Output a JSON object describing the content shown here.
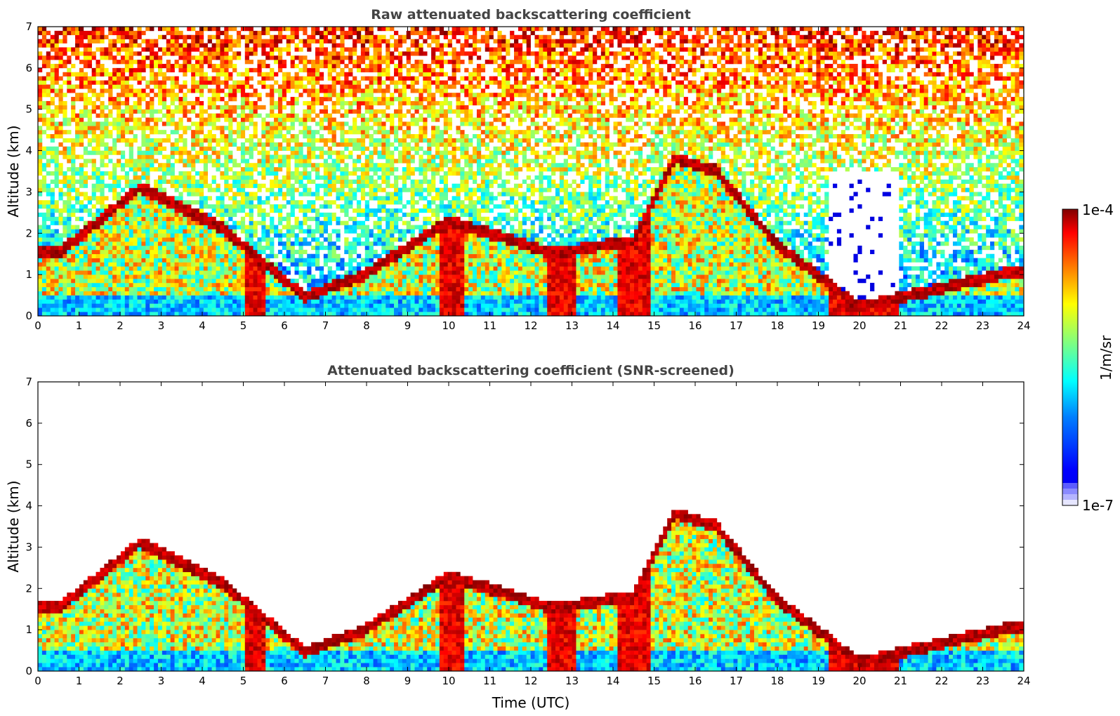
{
  "chart_data": [
    {
      "type": "heatmap",
      "title": "Raw attenuated backscattering coefficient",
      "xlabel": "",
      "ylabel": "Altitude (km)",
      "xlim": [
        0,
        24
      ],
      "ylim": [
        0,
        7
      ],
      "xticks": [
        "0",
        "1",
        "2",
        "3",
        "4",
        "5",
        "6",
        "7",
        "8",
        "9",
        "10",
        "11",
        "12",
        "13",
        "14",
        "15",
        "16",
        "17",
        "18",
        "19",
        "20",
        "21",
        "22",
        "23",
        "24"
      ],
      "yticks": [
        "0",
        "1",
        "2",
        "3",
        "4",
        "5",
        "6",
        "7"
      ],
      "approx_cloud_layer_km": [
        {
          "t": 0.5,
          "alt": 1.5
        },
        {
          "t": 2.5,
          "alt": 3.1
        },
        {
          "t": 4.5,
          "alt": 2.1
        },
        {
          "t": 6.5,
          "alt": 0.45
        },
        {
          "t": 8.0,
          "alt": 1.0
        },
        {
          "t": 10.0,
          "alt": 2.3
        },
        {
          "t": 12.5,
          "alt": 1.5
        },
        {
          "t": 14.5,
          "alt": 1.8
        },
        {
          "t": 15.5,
          "alt": 3.8
        },
        {
          "t": 16.5,
          "alt": 3.5
        },
        {
          "t": 18.0,
          "alt": 1.7
        },
        {
          "t": 20.0,
          "alt": 0.2
        },
        {
          "t": 23.5,
          "alt": 1.0
        }
      ]
    },
    {
      "type": "heatmap",
      "title": "Attenuated backscattering coefficient (SNR-screened)",
      "xlabel": "Time (UTC)",
      "ylabel": "Altitude (km)",
      "xlim": [
        0,
        24
      ],
      "ylim": [
        0,
        7
      ],
      "xticks": [
        "0",
        "1",
        "2",
        "3",
        "4",
        "5",
        "6",
        "7",
        "8",
        "9",
        "10",
        "11",
        "12",
        "13",
        "14",
        "15",
        "16",
        "17",
        "18",
        "19",
        "20",
        "21",
        "22",
        "23",
        "24"
      ],
      "yticks": [
        "0",
        "1",
        "2",
        "3",
        "4",
        "5",
        "6",
        "7"
      ]
    }
  ],
  "colorbar": {
    "label": "1/m/sr",
    "max_label": "1e-4",
    "min_label": "1e-7",
    "colormap": "jet",
    "scale": "log",
    "low_end_colors": [
      "#e6e6ff",
      "#b4b4ff",
      "#8a8aff",
      "#5c5cff"
    ],
    "colors": [
      "#00007f",
      "#0000ff",
      "#007fff",
      "#00ffff",
      "#7fff7f",
      "#ffff00",
      "#ff7f00",
      "#ff0000",
      "#7f0000"
    ]
  }
}
